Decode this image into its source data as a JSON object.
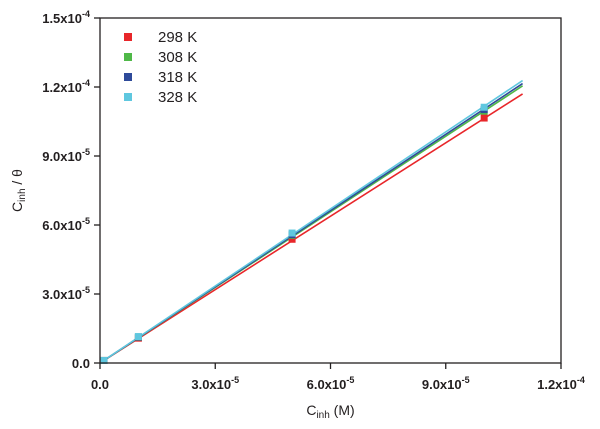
{
  "chart_data": {
    "type": "scatter",
    "title": "",
    "xlabel": {
      "main": "C",
      "sub": "inh",
      "rest": " (M)"
    },
    "ylabel": {
      "main": "C",
      "sub": "inh",
      "rest": " / θ"
    },
    "xlim": [
      0,
      0.00012
    ],
    "ylim": [
      0,
      0.00015
    ],
    "xticks": [
      {
        "value": 0,
        "mant": "0.0",
        "exp": ""
      },
      {
        "value": 3e-05,
        "mant": "3.0x10",
        "exp": "-5"
      },
      {
        "value": 6e-05,
        "mant": "6.0x10",
        "exp": "-5"
      },
      {
        "value": 9e-05,
        "mant": "9.0x10",
        "exp": "-5"
      },
      {
        "value": 0.00012,
        "mant": "1.2x10",
        "exp": "-4"
      }
    ],
    "yticks": [
      {
        "value": 0,
        "mant": "0.0",
        "exp": ""
      },
      {
        "value": 3e-05,
        "mant": "3.0x10",
        "exp": "-5"
      },
      {
        "value": 6e-05,
        "mant": "6.0x10",
        "exp": "-5"
      },
      {
        "value": 9e-05,
        "mant": "9.0x10",
        "exp": "-5"
      },
      {
        "value": 0.00012,
        "mant": "1.2x10",
        "exp": "-4"
      },
      {
        "value": 0.00015,
        "mant": "1.5x10",
        "exp": "-4"
      }
    ],
    "grid": false,
    "legend_position": "top-left",
    "series": [
      {
        "name": "298 K",
        "color": "#e8262a",
        "x": [
          1e-06,
          1e-05,
          5e-05,
          0.0001
        ],
        "y": [
          1.1e-06,
          1.08e-05,
          5.38e-05,
          0.0001065
        ],
        "fit": {
          "x": [
            0,
            0.00011
          ],
          "y": [
            0,
            0.000117
          ]
        }
      },
      {
        "name": "308 K",
        "color": "#4fb848",
        "x": [
          1e-06,
          1e-05,
          5e-05,
          0.0001
        ],
        "y": [
          1.1e-06,
          1.12e-05,
          5.55e-05,
          0.0001095
        ],
        "fit": {
          "x": [
            0,
            0.00011
          ],
          "y": [
            0,
            0.0001205
          ]
        }
      },
      {
        "name": "318 K",
        "color": "#2e4a9a",
        "x": [
          1e-06,
          1e-05,
          5e-05,
          0.0001
        ],
        "y": [
          1.1e-06,
          1.13e-05,
          5.58e-05,
          0.0001102
        ],
        "fit": {
          "x": [
            0,
            0.00011
          ],
          "y": [
            0,
            0.0001215
          ]
        }
      },
      {
        "name": "328 K",
        "color": "#5fc7df",
        "x": [
          1e-06,
          1e-05,
          5e-05,
          0.0001
        ],
        "y": [
          1.1e-06,
          1.15e-05,
          5.65e-05,
          0.0001112
        ],
        "fit": {
          "x": [
            0,
            0.00011
          ],
          "y": [
            0,
            0.0001228
          ]
        }
      }
    ]
  }
}
